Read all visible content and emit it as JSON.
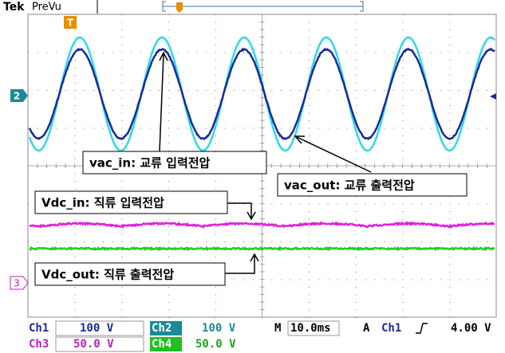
{
  "header": {
    "brand": "Tek",
    "mode": "PreVu"
  },
  "markers": {
    "trigger": "T",
    "ch2": "2",
    "ch3": "3"
  },
  "annotations": [
    "vac_in: 교류 입력전압",
    "vac_out: 교류 출력전압",
    "Vdc_in: 직류 입력전압",
    "Vdc_out: 직류 출력전압"
  ],
  "status": {
    "ch1_label": "Ch1",
    "ch1_scale": "100 V",
    "ch2_label": "Ch2",
    "ch2_scale": "100 V",
    "timebase_label": "M",
    "timebase": "10.0ms",
    "trigger_mode": "A",
    "trigger_source": "Ch1",
    "trigger_level": "4.00 V",
    "ch3_label": "Ch3",
    "ch3_scale": "50.0 V",
    "ch4_label": "Ch4",
    "ch4_scale": "50.0 V"
  }
}
